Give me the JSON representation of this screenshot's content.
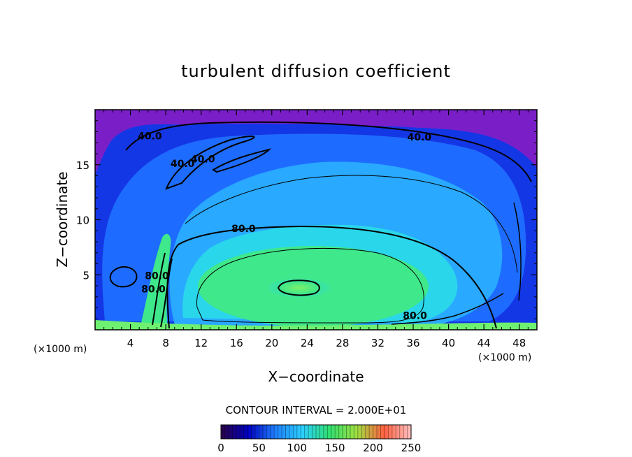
{
  "chart_data": {
    "type": "heatmap",
    "title": "turbulent diffusion coefficient",
    "xlabel": "X−coordinate",
    "ylabel": "Z−coordinate",
    "x_unit_left": "(×1000 m)",
    "x_unit_right": "(×1000 m)",
    "xlim": [
      0,
      50
    ],
    "ylim": [
      0,
      20
    ],
    "x_ticks": [
      4,
      8,
      12,
      16,
      20,
      24,
      28,
      32,
      36,
      40,
      44,
      48
    ],
    "y_ticks": [
      5,
      10,
      15
    ],
    "contour_interval_text": "CONTOUR INTERVAL = 2.000E+01",
    "contour_labels": [
      {
        "text": "40.0",
        "x": 6.2,
        "y": 17.3
      },
      {
        "text": "40.0",
        "x": 36.7,
        "y": 17.2
      },
      {
        "text": "40.0",
        "x": 9.9,
        "y": 14.8
      },
      {
        "text": "40.0",
        "x": 12.2,
        "y": 15.2
      },
      {
        "text": "80.0",
        "x": 16.8,
        "y": 8.9
      },
      {
        "text": "80.0",
        "x": 7.0,
        "y": 4.6
      },
      {
        "text": "80.0",
        "x": 6.6,
        "y": 3.4
      },
      {
        "text": "80.0",
        "x": 36.2,
        "y": 1.0
      }
    ],
    "colorbar": {
      "min": 0,
      "max": 250,
      "tick_labels": [
        "0",
        "50",
        "100",
        "150",
        "200",
        "250"
      ],
      "colors": [
        "#2a0048",
        "#0000c0",
        "#1f7fff",
        "#2ad0ff",
        "#30e070",
        "#9fe040",
        "#ff6040",
        "#ffc0c0"
      ]
    },
    "field_colors": {
      "top_band": "#7a1fc8",
      "outer": "#1437e6",
      "ring": "#1e6cff",
      "mid": "#29a9ff",
      "inner": "#2ad6ea",
      "core": "#3fe88a",
      "peak": "#6ef070"
    },
    "grid": false
  }
}
